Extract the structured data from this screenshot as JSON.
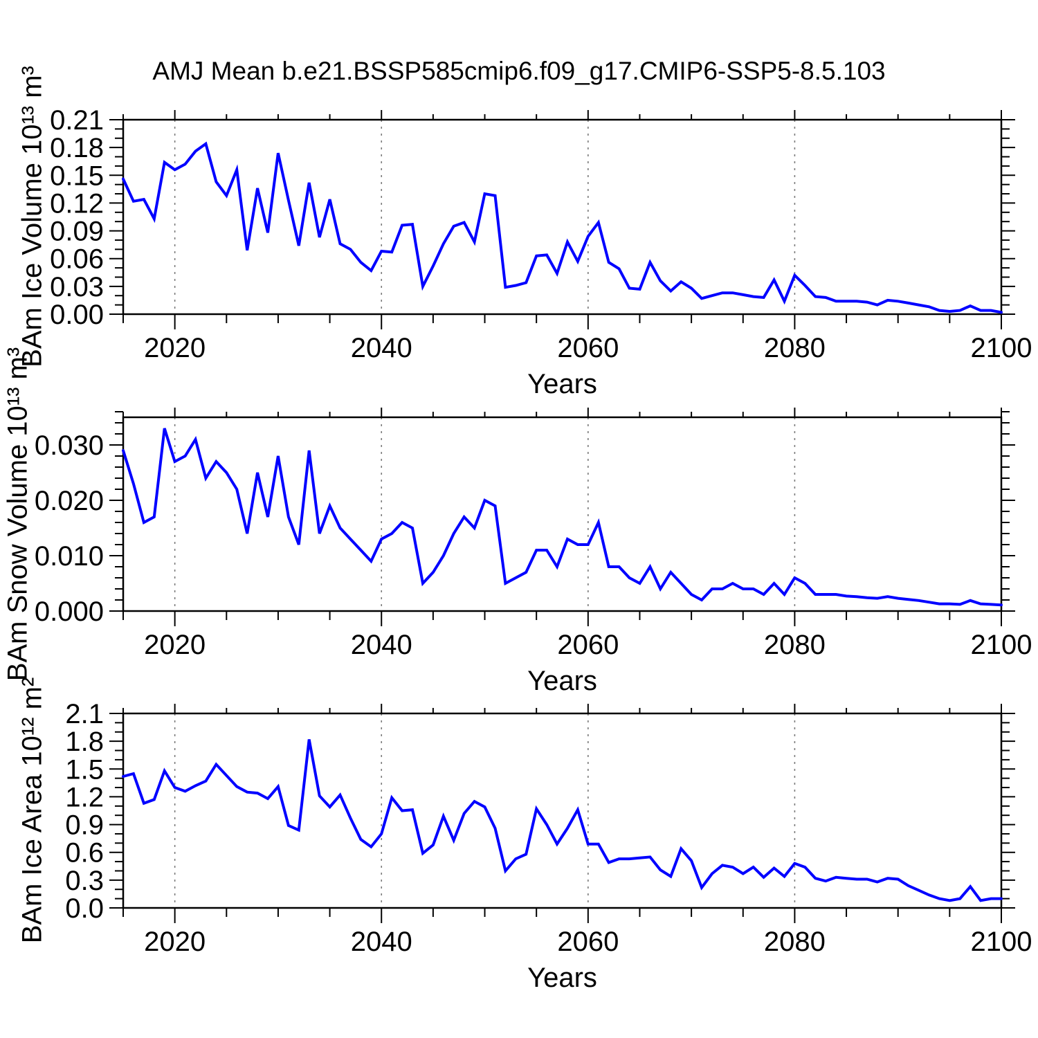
{
  "title": "AMJ Mean b.e21.BSSP585cmip6.f09_g17.CMIP6-SSP5-8.5.103",
  "line_color": "#0000ff",
  "axis_color": "#000000",
  "grid_color": "#7a7a7a",
  "years": [
    2015,
    2016,
    2017,
    2018,
    2019,
    2020,
    2021,
    2022,
    2023,
    2024,
    2025,
    2026,
    2027,
    2028,
    2029,
    2030,
    2031,
    2032,
    2033,
    2034,
    2035,
    2036,
    2037,
    2038,
    2039,
    2040,
    2041,
    2042,
    2043,
    2044,
    2045,
    2046,
    2047,
    2048,
    2049,
    2050,
    2051,
    2052,
    2053,
    2054,
    2055,
    2056,
    2057,
    2058,
    2059,
    2060,
    2061,
    2062,
    2063,
    2064,
    2065,
    2066,
    2067,
    2068,
    2069,
    2070,
    2071,
    2072,
    2073,
    2074,
    2075,
    2076,
    2077,
    2078,
    2079,
    2080,
    2081,
    2082,
    2083,
    2084,
    2085,
    2086,
    2087,
    2088,
    2089,
    2090,
    2091,
    2092,
    2093,
    2094,
    2095,
    2096,
    2097,
    2098,
    2099,
    2100
  ],
  "chart_data": [
    {
      "type": "line",
      "ylabel": "BAm Ice Volume 10¹³ m³",
      "xlabel": "Years",
      "xlim": [
        2015,
        2100
      ],
      "ylim": [
        0,
        0.21
      ],
      "y_minor": 0.01,
      "y_major": 0.03,
      "y_tick_labels": [
        "0.00",
        "0.03",
        "0.06",
        "0.09",
        "0.12",
        "0.15",
        "0.18",
        "0.21"
      ],
      "x_tick_labels": [
        "2020",
        "2040",
        "2060",
        "2080",
        "2100"
      ],
      "x_major_ticks": [
        2020,
        2040,
        2060,
        2080,
        2100
      ],
      "x_minor_step": 5,
      "gridlines_x": [
        2020,
        2040,
        2060,
        2080
      ],
      "grid": "dashed-vertical",
      "legend": "none",
      "values": [
        0.146,
        0.122,
        0.124,
        0.103,
        0.164,
        0.156,
        0.162,
        0.176,
        0.184,
        0.143,
        0.128,
        0.156,
        0.069,
        0.136,
        0.088,
        0.174,
        0.123,
        0.074,
        0.142,
        0.083,
        0.124,
        0.076,
        0.07,
        0.056,
        0.047,
        0.068,
        0.067,
        0.096,
        0.097,
        0.03,
        0.052,
        0.076,
        0.095,
        0.099,
        0.078,
        0.13,
        0.128,
        0.029,
        0.031,
        0.034,
        0.063,
        0.064,
        0.044,
        0.078,
        0.057,
        0.084,
        0.099,
        0.056,
        0.049,
        0.028,
        0.027,
        0.056,
        0.036,
        0.025,
        0.035,
        0.028,
        0.017,
        0.02,
        0.023,
        0.023,
        0.021,
        0.019,
        0.018,
        0.037,
        0.014,
        0.042,
        0.031,
        0.019,
        0.018,
        0.014,
        0.014,
        0.014,
        0.013,
        0.01,
        0.015,
        0.014,
        0.012,
        0.01,
        0.008,
        0.004,
        0.003,
        0.004,
        0.009,
        0.004,
        0.004,
        0.002
      ]
    },
    {
      "type": "line",
      "ylabel": "BAm Snow Volume 10¹³ m³",
      "xlabel": "Years",
      "xlim": [
        2015,
        2100
      ],
      "ylim": [
        0,
        0.035
      ],
      "y_minor": 0.002,
      "y_major": 0.01,
      "y_tick_labels": [
        "0.000",
        "0.010",
        "0.020",
        "0.030"
      ],
      "x_tick_labels": [
        "2020",
        "2040",
        "2060",
        "2080",
        "2100"
      ],
      "x_major_ticks": [
        2020,
        2040,
        2060,
        2080,
        2100
      ],
      "x_minor_step": 5,
      "gridlines_x": [
        2020,
        2040,
        2060,
        2080
      ],
      "grid": "dashed-vertical",
      "legend": "none",
      "values": [
        0.029,
        0.023,
        0.016,
        0.017,
        0.033,
        0.027,
        0.028,
        0.031,
        0.024,
        0.027,
        0.025,
        0.022,
        0.014,
        0.025,
        0.017,
        0.028,
        0.017,
        0.012,
        0.029,
        0.014,
        0.019,
        0.015,
        0.013,
        0.011,
        0.009,
        0.013,
        0.014,
        0.016,
        0.015,
        0.005,
        0.007,
        0.01,
        0.014,
        0.017,
        0.015,
        0.02,
        0.019,
        0.005,
        0.006,
        0.007,
        0.011,
        0.011,
        0.008,
        0.013,
        0.012,
        0.012,
        0.016,
        0.008,
        0.008,
        0.006,
        0.005,
        0.008,
        0.004,
        0.007,
        0.005,
        0.003,
        0.002,
        0.004,
        0.004,
        0.005,
        0.004,
        0.004,
        0.003,
        0.005,
        0.003,
        0.006,
        0.005,
        0.003,
        0.003,
        0.003,
        0.0027,
        0.0026,
        0.0024,
        0.0023,
        0.0026,
        0.0023,
        0.0021,
        0.0019,
        0.0016,
        0.0013,
        0.0013,
        0.0012,
        0.0019,
        0.0013,
        0.0012,
        0.0011
      ]
    },
    {
      "type": "line",
      "ylabel": "BAm Ice Area 10¹² m²",
      "xlabel": "Years",
      "xlim": [
        2015,
        2100
      ],
      "ylim": [
        0,
        2.1
      ],
      "y_minor": 0.1,
      "y_major": 0.3,
      "y_tick_labels": [
        "0.0",
        "0.3",
        "0.6",
        "0.9",
        "1.2",
        "1.5",
        "1.8",
        "2.1"
      ],
      "x_tick_labels": [
        "2020",
        "2040",
        "2060",
        "2080",
        "2100"
      ],
      "x_major_ticks": [
        2020,
        2040,
        2060,
        2080,
        2100
      ],
      "x_minor_step": 5,
      "gridlines_x": [
        2020,
        2040,
        2060,
        2080
      ],
      "grid": "dashed-vertical",
      "legend": "none",
      "values": [
        1.42,
        1.45,
        1.13,
        1.17,
        1.48,
        1.3,
        1.26,
        1.32,
        1.37,
        1.55,
        1.43,
        1.31,
        1.25,
        1.24,
        1.18,
        1.31,
        0.89,
        0.84,
        1.82,
        1.21,
        1.09,
        1.22,
        0.97,
        0.74,
        0.66,
        0.8,
        1.19,
        1.05,
        1.06,
        0.59,
        0.68,
        0.99,
        0.73,
        1.02,
        1.15,
        1.09,
        0.86,
        0.4,
        0.53,
        0.58,
        1.07,
        0.9,
        0.69,
        0.86,
        1.06,
        0.69,
        0.69,
        0.49,
        0.53,
        0.53,
        0.54,
        0.55,
        0.41,
        0.34,
        0.64,
        0.51,
        0.22,
        0.37,
        0.46,
        0.44,
        0.37,
        0.44,
        0.33,
        0.43,
        0.34,
        0.48,
        0.44,
        0.32,
        0.29,
        0.33,
        0.32,
        0.31,
        0.31,
        0.28,
        0.32,
        0.31,
        0.24,
        0.19,
        0.14,
        0.1,
        0.08,
        0.1,
        0.23,
        0.08,
        0.1,
        0.1
      ]
    }
  ]
}
